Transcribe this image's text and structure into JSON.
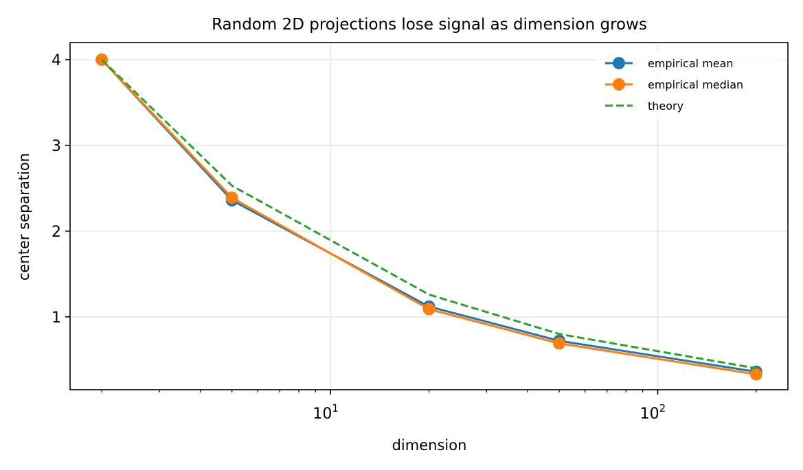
{
  "chart_data": {
    "type": "line",
    "title": "Random 2D projections lose signal as dimension grows",
    "xlabel": "dimension",
    "ylabel": "center separation",
    "xscale": "log",
    "xlim": [
      1.6,
      250
    ],
    "ylim": [
      0.15,
      4.2
    ],
    "grid": true,
    "legend_position": "top-right",
    "x": [
      2,
      5,
      20,
      50,
      200
    ],
    "x_ticks": [
      {
        "value": 10,
        "base": "10",
        "exp": "1"
      },
      {
        "value": 100,
        "base": "10",
        "exp": "2"
      }
    ],
    "y_ticks": [
      {
        "value": 1,
        "label": "1"
      },
      {
        "value": 2,
        "label": "2"
      },
      {
        "value": 3,
        "label": "3"
      },
      {
        "value": 4,
        "label": "4"
      }
    ],
    "series": [
      {
        "name": "empirical mean",
        "color": "#1f77b4",
        "style": "solid",
        "marker": true,
        "values": [
          4.0,
          2.36,
          1.12,
          0.72,
          0.36
        ]
      },
      {
        "name": "empirical median",
        "color": "#ff7f0e",
        "style": "solid",
        "marker": true,
        "values": [
          4.0,
          2.39,
          1.09,
          0.69,
          0.33
        ]
      },
      {
        "name": "theory",
        "color": "#2ca02c",
        "style": "dashed",
        "marker": false,
        "values": [
          4.0,
          2.53,
          1.26,
          0.8,
          0.4
        ]
      }
    ]
  }
}
